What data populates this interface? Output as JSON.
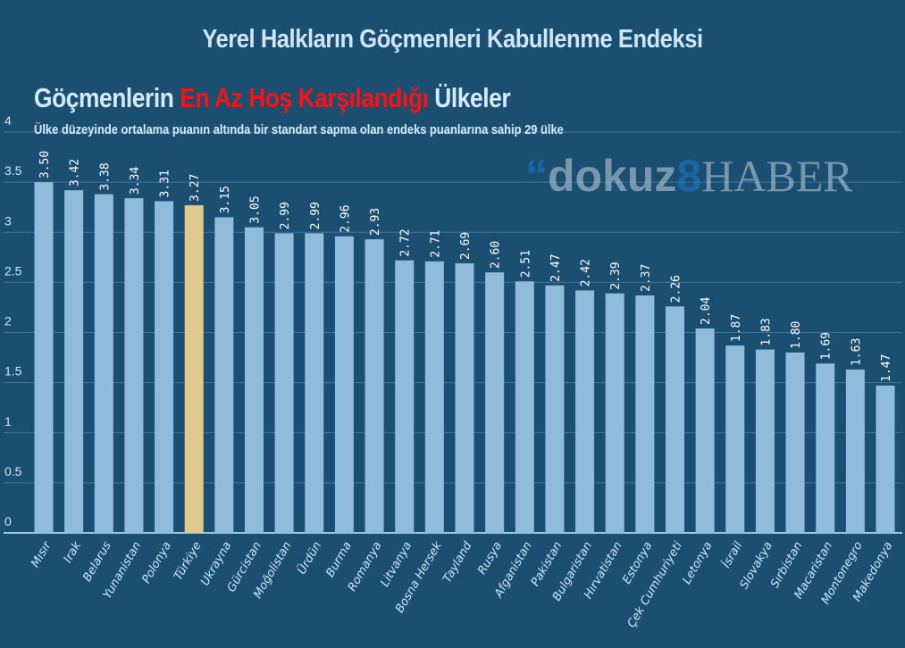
{
  "chart_data": {
    "type": "bar",
    "title": "Yerel Halkların Göçmenleri Kabullenme Endeksi",
    "subtitle_parts": [
      "Göçmenlerin ",
      "En Az Hoş Karşılandığı",
      " Ülkeler"
    ],
    "note": "Ülke düzeyinde ortalama puanın altında bir standart sapma olan endeks puanlarına sahip 29 ülke",
    "categories": [
      "Mısır",
      "Irak",
      "Belarus",
      "Yunanistan",
      "Polonya",
      "Türkiye",
      "Ukrayna",
      "Gürcistan",
      "Moğolistan",
      "Ürdün",
      "Burma",
      "Romanya",
      "Litvanya",
      "Bosna Hersek",
      "Tayland",
      "Rusya",
      "Afganistan",
      "Pakistan",
      "Bulgaristan",
      "Hırvatistan",
      "Estonya",
      "Çek Cumhuriyeti",
      "Letonya",
      "İsrail",
      "Slovakya",
      "Sırbistan",
      "Macaristan",
      "Montonegro",
      "Makedonya"
    ],
    "values": [
      3.5,
      3.42,
      3.38,
      3.34,
      3.31,
      3.27,
      3.15,
      3.05,
      2.99,
      2.99,
      2.96,
      2.93,
      2.72,
      2.71,
      2.69,
      2.6,
      2.51,
      2.47,
      2.42,
      2.39,
      2.37,
      2.26,
      2.04,
      1.87,
      1.83,
      1.8,
      1.69,
      1.63,
      1.47
    ],
    "highlight": "Türkiye",
    "ylim": [
      0,
      4
    ],
    "yticks": [
      "0",
      "0.5",
      "1",
      "1.5",
      "2",
      "2.5",
      "3",
      "3.5",
      "4"
    ],
    "xlabel": "",
    "ylabel": "",
    "grid": true,
    "colors": {
      "background": "#1a4f72",
      "bar": "#8fbcdb",
      "highlight": "#e0c98a",
      "grid": "#3f7499",
      "text": "#cfe6f7",
      "accent": "#ff1010"
    }
  },
  "watermark": {
    "quote": "“",
    "part1": "dokuz",
    "part2": "8",
    "part3": "HABER"
  }
}
